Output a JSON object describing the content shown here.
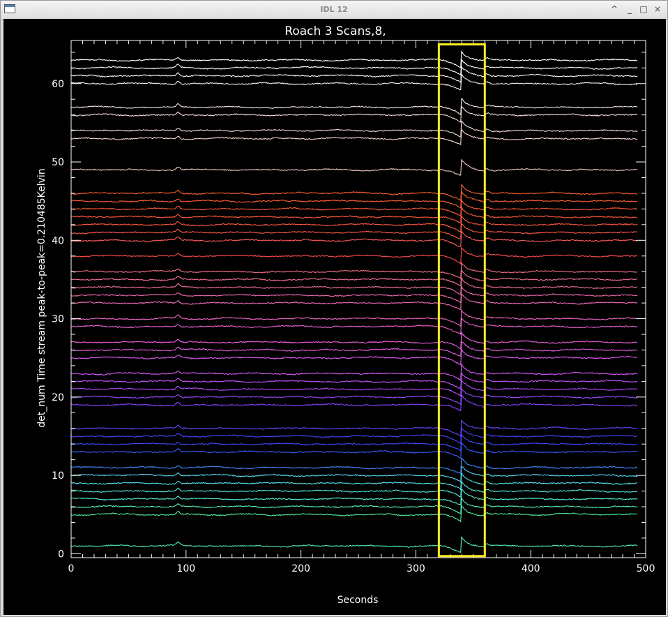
{
  "window": {
    "title": "IDL 12",
    "buttons": [
      "^",
      "_",
      "□",
      "×"
    ]
  },
  "chart_data": {
    "type": "line",
    "title": "Roach 3 Scans,8,",
    "xlabel": "Seconds",
    "ylabel": "det_num Time stream peak-to-peak=0.210485Kelvin",
    "xlim": [
      0,
      500
    ],
    "ylim": [
      -0.5,
      65.5
    ],
    "x_ticks": [
      0,
      100,
      200,
      300,
      400,
      500
    ],
    "y_ticks": [
      0,
      10,
      20,
      30,
      40,
      50,
      60
    ],
    "data_x_range": [
      0,
      493
    ],
    "series_note": "one time stream per detector, offset by detector number",
    "detectors": [
      {
        "det": 1,
        "color": "#55f0b8"
      },
      {
        "det": 5,
        "color": "#55f0a0"
      },
      {
        "det": 6,
        "color": "#55f0c4"
      },
      {
        "det": 7,
        "color": "#55f0d2"
      },
      {
        "det": 8,
        "color": "#55ecdc"
      },
      {
        "det": 9,
        "color": "#55e4e8"
      },
      {
        "det": 10,
        "color": "#55d8f0"
      },
      {
        "det": 11,
        "color": "#3f8cff"
      },
      {
        "det": 13,
        "color": "#3a5cff"
      },
      {
        "det": 14,
        "color": "#3a4cff"
      },
      {
        "det": 15,
        "color": "#4a44ff"
      },
      {
        "det": 16,
        "color": "#6a44ff"
      },
      {
        "det": 19,
        "color": "#8a44ff"
      },
      {
        "det": 20,
        "color": "#9a4cff"
      },
      {
        "det": 21,
        "color": "#b04cff"
      },
      {
        "det": 22,
        "color": "#c854ff"
      },
      {
        "det": 23,
        "color": "#dc5cff"
      },
      {
        "det": 25,
        "color": "#e45cf4"
      },
      {
        "det": 26,
        "color": "#e85ce8"
      },
      {
        "det": 27,
        "color": "#ec60e0"
      },
      {
        "det": 29,
        "color": "#f064d0"
      },
      {
        "det": 30,
        "color": "#f068c4"
      },
      {
        "det": 32,
        "color": "#f06cb8"
      },
      {
        "det": 33,
        "color": "#f06cac"
      },
      {
        "det": 34,
        "color": "#f070a0"
      },
      {
        "det": 35,
        "color": "#f47094"
      },
      {
        "det": 36,
        "color": "#f87088"
      },
      {
        "det": 38,
        "color": "#ff4c4c"
      },
      {
        "det": 40,
        "color": "#ff5c5c"
      },
      {
        "det": 41,
        "color": "#ff5a48"
      },
      {
        "det": 42,
        "color": "#ff5a40"
      },
      {
        "det": 43,
        "color": "#ff5a3a"
      },
      {
        "det": 44,
        "color": "#ff5a34"
      },
      {
        "det": 45,
        "color": "#ff5e30"
      },
      {
        "det": 46,
        "color": "#ff622c"
      },
      {
        "det": 49,
        "color": "#f0c8c0"
      },
      {
        "det": 53,
        "color": "#f4d4cc"
      },
      {
        "det": 54,
        "color": "#f4dcd4"
      },
      {
        "det": 56,
        "color": "#f8e0da"
      },
      {
        "det": 57,
        "color": "#fae8e4"
      },
      {
        "det": 60,
        "color": "#fcf0ee"
      },
      {
        "det": 61,
        "color": "#fdf5f4"
      },
      {
        "det": 62,
        "color": "#fefafa"
      },
      {
        "det": 63,
        "color": "#ffffff"
      }
    ],
    "annotations": [
      {
        "type": "rectangle",
        "color": "#ffee22",
        "x_range": [
          320,
          360
        ],
        "y_range": [
          -0.3,
          65
        ]
      }
    ],
    "features": [
      {
        "type": "step",
        "x": 340,
        "description": "sharp drop then jump in all streams"
      },
      {
        "type": "bump",
        "x": 93
      }
    ]
  }
}
